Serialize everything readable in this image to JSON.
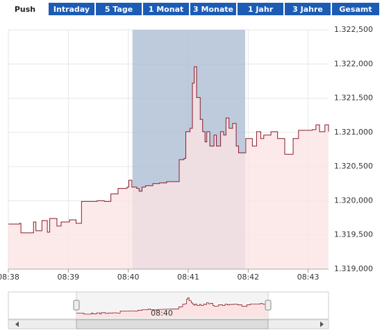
{
  "tabs": [
    "Push",
    "Intraday",
    "5 Tage",
    "1 Monat",
    "3 Monate",
    "1 Jahr",
    "3 Jahre",
    "Gesamt"
  ],
  "chart_data": {
    "type": "line",
    "step": true,
    "x": [
      518.0,
      518.19,
      518.21,
      518.38,
      518.42,
      518.46,
      518.56,
      518.63,
      518.65,
      518.69,
      518.79,
      518.81,
      518.88,
      519.02,
      519.13,
      519.22,
      519.48,
      519.6,
      519.71,
      519.77,
      519.83,
      519.98,
      520.01,
      520.06,
      520.14,
      520.18,
      520.23,
      520.29,
      520.41,
      520.52,
      520.64,
      520.81,
      520.85,
      520.93,
      520.96,
      521.03,
      521.07,
      521.1,
      521.14,
      521.2,
      521.24,
      521.28,
      521.31,
      521.36,
      521.43,
      521.47,
      521.54,
      521.59,
      521.63,
      521.68,
      521.74,
      521.8,
      521.84,
      521.91,
      521.96,
      522.03,
      522.07,
      522.14,
      522.21,
      522.26,
      522.38,
      522.49,
      522.58,
      522.61,
      522.72,
      522.75,
      522.84,
      523.07,
      523.13,
      523.19,
      523.28,
      523.34
    ],
    "values": [
      1.31966,
      1.31967,
      1.31953,
      1.31953,
      1.31969,
      1.31956,
      1.31971,
      1.31971,
      1.31954,
      1.31974,
      1.31974,
      1.31963,
      1.31969,
      1.31972,
      1.31967,
      1.31999,
      1.32,
      1.31999,
      1.3201,
      1.3201,
      1.32018,
      1.3202,
      1.3203,
      1.3202,
      1.32018,
      1.32014,
      1.3202,
      1.32022,
      1.32025,
      1.32026,
      1.32028,
      1.32028,
      1.3206,
      1.32062,
      1.32101,
      1.32106,
      1.32172,
      1.32196,
      1.32151,
      1.32119,
      1.32101,
      1.32086,
      1.32101,
      1.3208,
      1.32096,
      1.3208,
      1.32101,
      1.32096,
      1.32121,
      1.32106,
      1.32113,
      1.3208,
      1.3207,
      1.3207,
      1.32091,
      1.32091,
      1.3208,
      1.32101,
      1.32091,
      1.32096,
      1.32101,
      1.32091,
      1.32091,
      1.32068,
      1.32068,
      1.32091,
      1.32103,
      1.32104,
      1.32111,
      1.32101,
      1.32111,
      1.32101
    ],
    "color": "#8b1a2b",
    "area_color": "#fbe3e3",
    "highlight": [
      520.07,
      521.95
    ],
    "highlight_color": "#a7bad0",
    "xlim": [
      518,
      523.34
    ],
    "xticks": [
      {
        "value": 518,
        "label": "08:38"
      },
      {
        "value": 519,
        "label": "08:39"
      },
      {
        "value": 520,
        "label": "08:40"
      },
      {
        "value": 521,
        "label": "08:41"
      },
      {
        "value": 522,
        "label": "08:42"
      },
      {
        "value": 523,
        "label": "08:43"
      }
    ],
    "ylim": [
      1.319,
      1.3225
    ],
    "yticks": [
      {
        "value": 1.3225,
        "label": "1.322,500"
      },
      {
        "value": 1.322,
        "label": "1.322,000"
      },
      {
        "value": 1.3215,
        "label": "1.321,500"
      },
      {
        "value": 1.321,
        "label": "1.321,000"
      },
      {
        "value": 1.3205,
        "label": "1.320,500"
      },
      {
        "value": 1.32,
        "label": "1.320,000"
      },
      {
        "value": 1.3195,
        "label": "1.319,500"
      },
      {
        "value": 1.319,
        "label": "1.319,000"
      }
    ],
    "grid": true,
    "navigator_label": "08:40"
  }
}
